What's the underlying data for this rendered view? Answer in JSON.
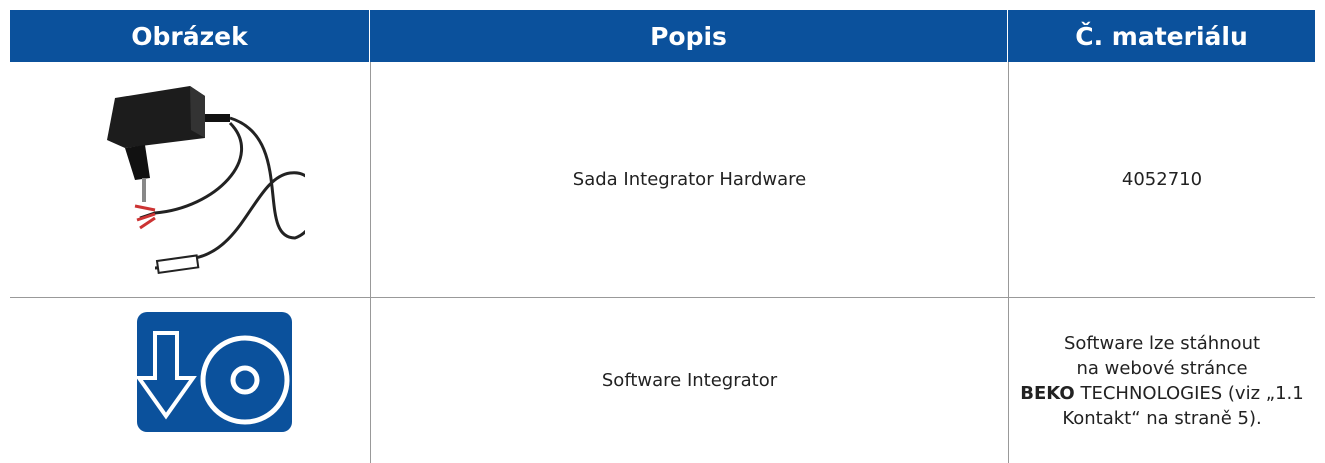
{
  "table": {
    "headers": [
      "Obrázek",
      "Popis",
      "Č. materiálu"
    ],
    "rows": [
      {
        "description": "Sada Integrator Hardware",
        "material": "4052710"
      },
      {
        "description": "Software Integrator",
        "material": {
          "line1": "Software lze stáhnout",
          "line2": "na webové stránce",
          "line3_bold": "BEKO",
          "line3_rest": " TECHNOLOGIES (viz „1.1",
          "line4": "Kontakt“ na straně 5)."
        }
      }
    ]
  }
}
